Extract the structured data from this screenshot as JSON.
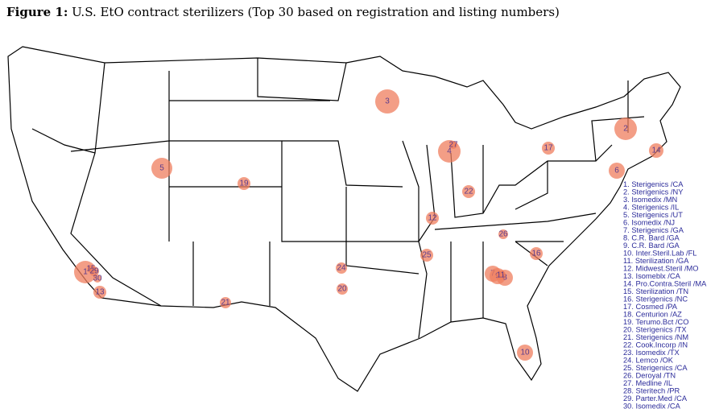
{
  "title": {
    "label": "Figure 1:",
    "text": "U.S. EtO contract sterilizers (Top 30 based on registration and listing numbers)"
  },
  "legend": [
    "1. Sterigenics /CA",
    "2. Sterigenics /NY",
    "3. Isomedix /MN",
    "4. Sterigenics /IL",
    "5. Sterigenics /UT",
    "6. Isomedix /NJ",
    "7. Sterigenics /GA",
    "8. C.R. Bard /GA",
    "9. C.R. Bard /GA",
    "10. Inter.Steril.Lab /FL",
    "11. Sterilization /GA",
    "12. Midwest.Steril /MO",
    "13. Isomeblx /CA",
    "14. Pro.Contra.Steril /MA",
    "15. Sterilization /TN",
    "16. Sterigenics /NC",
    "17. Cosmed /PA",
    "18. Centurion /AZ",
    "19. Terumo.Bct  /CO",
    "20. Sterigenics /TX",
    "21. Sterigenics /NM",
    "22. Cook.Incorp /IN",
    "23. Isomedix /TX",
    "24. Lemco /OK",
    "25. Sterigenics /CA",
    "26. Deroyal /TN",
    "27. Medline /IL",
    "28. Steritech /PR",
    "29. Parter.Med /CA",
    "30. Isomedix /CA"
  ],
  "markers": [
    "3",
    "2",
    "4",
    "27",
    "17",
    "14",
    "6",
    "5",
    "19",
    "22",
    "12",
    "26",
    "25",
    "16",
    "7",
    "9",
    "8",
    "11",
    "10",
    "24",
    "20",
    "21",
    "13",
    "1",
    "15",
    "29",
    "30"
  ]
}
